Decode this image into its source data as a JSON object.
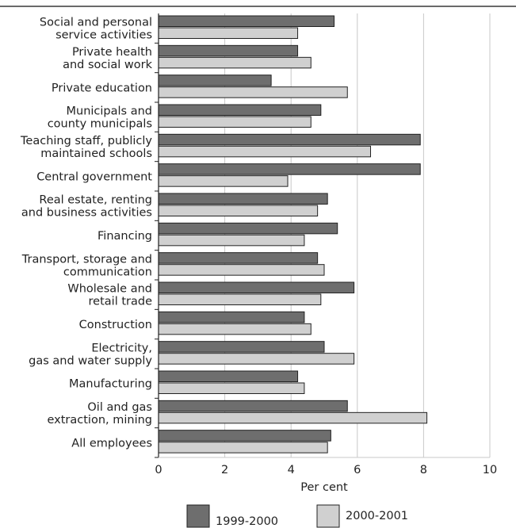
{
  "chart_data": {
    "type": "bar",
    "orientation": "horizontal",
    "categories": [
      [
        "Social and personal",
        "service activities"
      ],
      [
        "Private health",
        "and social work"
      ],
      [
        "Private education"
      ],
      [
        "Municipals and",
        "county municipals"
      ],
      [
        "Teaching staff, publicly",
        "maintained schools"
      ],
      [
        "Central government"
      ],
      [
        "Real estate, renting",
        "and business activities"
      ],
      [
        "Financing"
      ],
      [
        "Transport, storage and",
        "communication"
      ],
      [
        "Wholesale and",
        "retail trade"
      ],
      [
        "Construction"
      ],
      [
        "Electricity,",
        "gas and water supply"
      ],
      [
        "Manufacturing"
      ],
      [
        "Oil and gas",
        "extraction, mining"
      ],
      [
        "All employees"
      ]
    ],
    "series": [
      {
        "name": "1999-2000",
        "color": "#6e6e6e",
        "values": [
          5.3,
          4.2,
          3.4,
          4.9,
          7.9,
          7.9,
          5.1,
          5.4,
          4.8,
          5.9,
          4.4,
          5.0,
          4.2,
          5.7,
          5.2
        ]
      },
      {
        "name": "2000-2001",
        "color": "#d0d0d0",
        "values": [
          4.2,
          4.6,
          5.7,
          4.6,
          6.4,
          3.9,
          4.8,
          4.4,
          5.0,
          4.9,
          4.6,
          5.9,
          4.4,
          8.1,
          5.1
        ]
      }
    ],
    "xlabel": "Per cent",
    "xlim": [
      0,
      10
    ],
    "xticks": [
      "0",
      "2",
      "4",
      "6",
      "8",
      "10"
    ],
    "grid": true,
    "legend_position": "bottom"
  }
}
